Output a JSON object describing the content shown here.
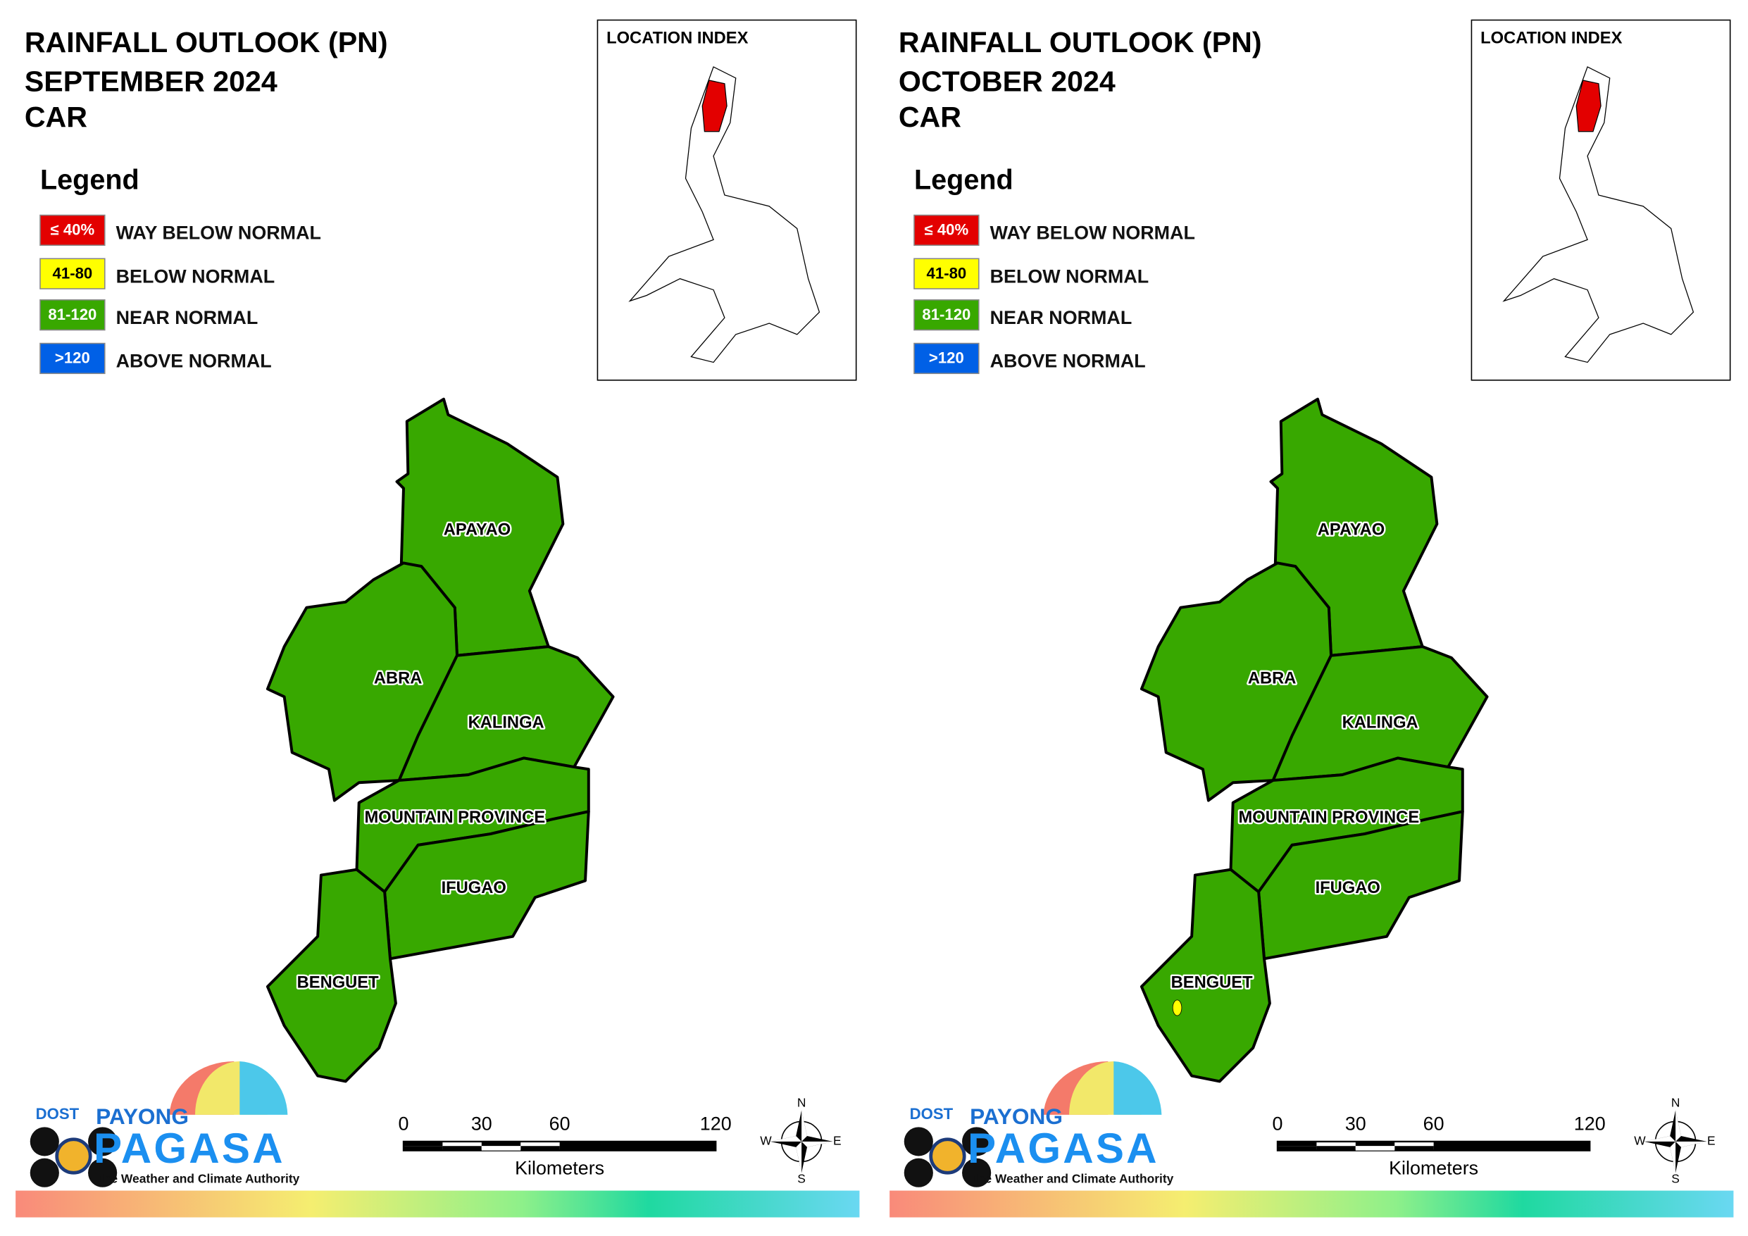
{
  "panels": [
    {
      "title": [
        "RAINFALL OUTLOOK (PN)",
        "SEPTEMBER 2024",
        "CAR"
      ],
      "location_index": "LOCATION INDEX",
      "legend": {
        "title": "Legend",
        "items": [
          {
            "swatch": "≤ 40%",
            "label": "WAY BELOW NORMAL",
            "color": "#e30000"
          },
          {
            "swatch": "41-80",
            "label": "BELOW NORMAL",
            "color": "#ffff00"
          },
          {
            "swatch": "81-120",
            "label": "NEAR NORMAL",
            "color": "#38a800"
          },
          {
            "swatch": ">120",
            "label": "ABOVE NORMAL",
            "color": "#0060e6"
          }
        ]
      },
      "provinces": [
        {
          "name": "APAYAO",
          "color": "#38a800"
        },
        {
          "name": "ABRA",
          "color": "#38a800"
        },
        {
          "name": "KALINGA",
          "color": "#38a800"
        },
        {
          "name": "MOUNTAIN PROVINCE",
          "color": "#38a800"
        },
        {
          "name": "IFUGAO",
          "color": "#38a800"
        },
        {
          "name": "BENGUET",
          "color": "#38a800"
        }
      ],
      "scale": {
        "ticks": [
          0,
          30,
          60,
          120
        ],
        "unit": "Kilometers"
      },
      "compass": {
        "n": "N",
        "e": "E",
        "s": "S",
        "w": "W"
      },
      "logo": {
        "dost": "DOST",
        "payong": "PAYONG",
        "pagasa": "PAGASA",
        "tagline": "The Weather and Climate Authority"
      }
    },
    {
      "title": [
        "RAINFALL OUTLOOK (PN)",
        "OCTOBER 2024",
        "CAR"
      ],
      "location_index": "LOCATION INDEX",
      "legend": {
        "title": "Legend",
        "items": [
          {
            "swatch": "≤ 40%",
            "label": "WAY BELOW NORMAL",
            "color": "#e30000"
          },
          {
            "swatch": "41-80",
            "label": "BELOW NORMAL",
            "color": "#ffff00"
          },
          {
            "swatch": "81-120",
            "label": "NEAR NORMAL",
            "color": "#38a800"
          },
          {
            "swatch": ">120",
            "label": "ABOVE NORMAL",
            "color": "#0060e6"
          }
        ]
      },
      "provinces": [
        {
          "name": "APAYAO",
          "color": "#38a800"
        },
        {
          "name": "ABRA",
          "color": "#38a800"
        },
        {
          "name": "KALINGA",
          "color": "#38a800"
        },
        {
          "name": "MOUNTAIN PROVINCE",
          "color": "#38a800"
        },
        {
          "name": "IFUGAO",
          "color": "#38a800"
        },
        {
          "name": "BENGUET",
          "color": "#38a800",
          "spots": [
            "#ffff00"
          ]
        }
      ],
      "scale": {
        "ticks": [
          0,
          30,
          60,
          120
        ],
        "unit": "Kilometers"
      },
      "compass": {
        "n": "N",
        "e": "E",
        "s": "S",
        "w": "W"
      },
      "logo": {
        "dost": "DOST",
        "payong": "PAYONG",
        "pagasa": "PAGASA",
        "tagline": "The Weather and Climate Authority"
      }
    }
  ]
}
